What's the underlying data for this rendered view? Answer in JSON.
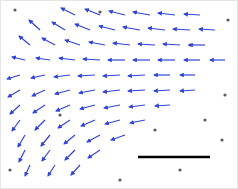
{
  "chart_data": {
    "type": "quiver",
    "xlim": [
      0,
      238
    ],
    "ylim": [
      0,
      189
    ],
    "tick_labels": false,
    "color": "#2f45d8",
    "x": [
      75,
      100,
      125,
      150,
      175,
      200,
      40,
      65,
      90,
      115,
      140,
      165,
      190,
      215,
      30,
      55,
      80,
      105,
      130,
      155,
      180,
      205,
      25,
      50,
      75,
      100,
      125,
      150,
      175,
      200,
      225,
      20,
      45,
      70,
      95,
      120,
      145,
      170,
      195,
      20,
      45,
      70,
      95,
      120,
      145,
      170,
      195,
      20,
      45,
      70,
      95,
      120,
      145,
      170,
      20,
      45,
      70,
      95,
      120,
      145,
      25,
      50,
      75,
      100,
      125,
      25,
      50,
      75,
      100,
      30,
      55,
      80
    ],
    "y": [
      174,
      174,
      174,
      174,
      174,
      174,
      159,
      159,
      159,
      159,
      159,
      159,
      159,
      159,
      144,
      144,
      144,
      144,
      144,
      144,
      144,
      144,
      129,
      129,
      129,
      129,
      129,
      129,
      129,
      129,
      129,
      114,
      114,
      114,
      114,
      114,
      114,
      114,
      114,
      99,
      99,
      99,
      99,
      99,
      99,
      99,
      99,
      84,
      84,
      84,
      84,
      84,
      84,
      84,
      69,
      69,
      69,
      69,
      69,
      69,
      54,
      54,
      54,
      54,
      54,
      39,
      39,
      39,
      39,
      24,
      24,
      24
    ],
    "u": [
      -14,
      -15,
      -16,
      -17,
      -17,
      -16,
      -11,
      -13,
      -15,
      -16,
      -17,
      -17,
      -17,
      -16,
      -11,
      -13,
      -15,
      -16,
      -17,
      -17,
      -17,
      -16,
      -13,
      -14,
      -16,
      -17,
      -17,
      -17,
      -17,
      -16,
      -15,
      -13,
      -14,
      -16,
      -17,
      -17,
      -17,
      -16,
      -15,
      -12,
      -13,
      -15,
      -16,
      -17,
      -17,
      -16,
      -15,
      -10,
      -12,
      -14,
      -15,
      -16,
      -16,
      -15,
      -8,
      -10,
      -12,
      -14,
      -15,
      -15,
      -7,
      -9,
      -11,
      -13,
      -14,
      -6,
      -8,
      -10,
      -12,
      -5,
      -7,
      -9
    ],
    "v": [
      7,
      6,
      4,
      3,
      2,
      1,
      10,
      8,
      6,
      4,
      3,
      2,
      1,
      1,
      9,
      7,
      5,
      3,
      2,
      1,
      1,
      0,
      3,
      2,
      2,
      1,
      0,
      0,
      0,
      0,
      0,
      -4,
      -3,
      -2,
      -1,
      -1,
      -1,
      0,
      0,
      -7,
      -6,
      -4,
      -3,
      -2,
      -1,
      -1,
      -1,
      -9,
      -8,
      -6,
      -4,
      -3,
      -2,
      -1,
      -11,
      -10,
      -8,
      -6,
      -4,
      -3,
      -12,
      -11,
      -9,
      -7,
      -5,
      -12,
      -11,
      -10,
      -8,
      -11,
      -11,
      -10
    ],
    "particles": {
      "x": [
        15,
        228,
        225,
        222,
        205,
        180,
        120,
        10,
        100,
        60,
        190,
        155
      ],
      "y": [
        179,
        169,
        94,
        49,
        69,
        19,
        9,
        19,
        177,
        74,
        144,
        59
      ]
    },
    "scale_bar": {
      "x": [
        138,
        210
      ],
      "y": 32
    }
  }
}
